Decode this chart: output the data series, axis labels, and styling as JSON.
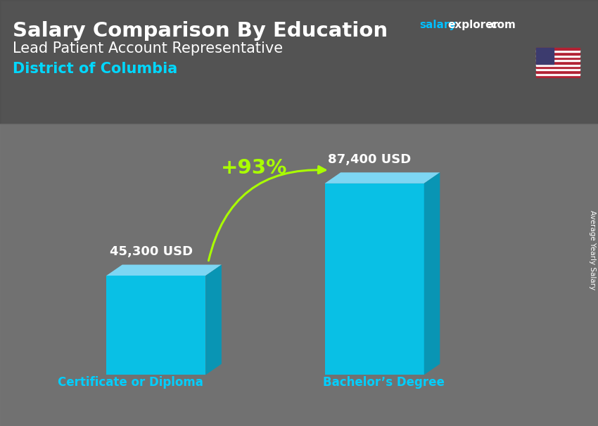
{
  "title_bold": "Salary Comparison By Education",
  "subtitle": "Lead Patient Account Representative",
  "location": "District of Columbia",
  "ylabel": "Average Yearly Salary",
  "categories": [
    "Certificate or Diploma",
    "Bachelor’s Degree"
  ],
  "values": [
    45300,
    87400
  ],
  "value_labels": [
    "45,300 USD",
    "87,400 USD"
  ],
  "pct_change": "+93%",
  "bar_face_color": "#00C8F0",
  "bar_top_color": "#7FDFFF",
  "bar_side_color": "#0099BB",
  "title_color": "#FFFFFF",
  "subtitle_color": "#FFFFFF",
  "location_color": "#00D8FF",
  "label_color": "#FFFFFF",
  "category_color": "#00CFFF",
  "pct_color": "#AAFF00",
  "arrow_color": "#AAFF00",
  "bg_color": "#6a6a6a",
  "watermark_salary_color": "#00BFFF",
  "watermark_explorer_color": "#FFFFFF",
  "watermark_com_color": "#FFFFFF"
}
